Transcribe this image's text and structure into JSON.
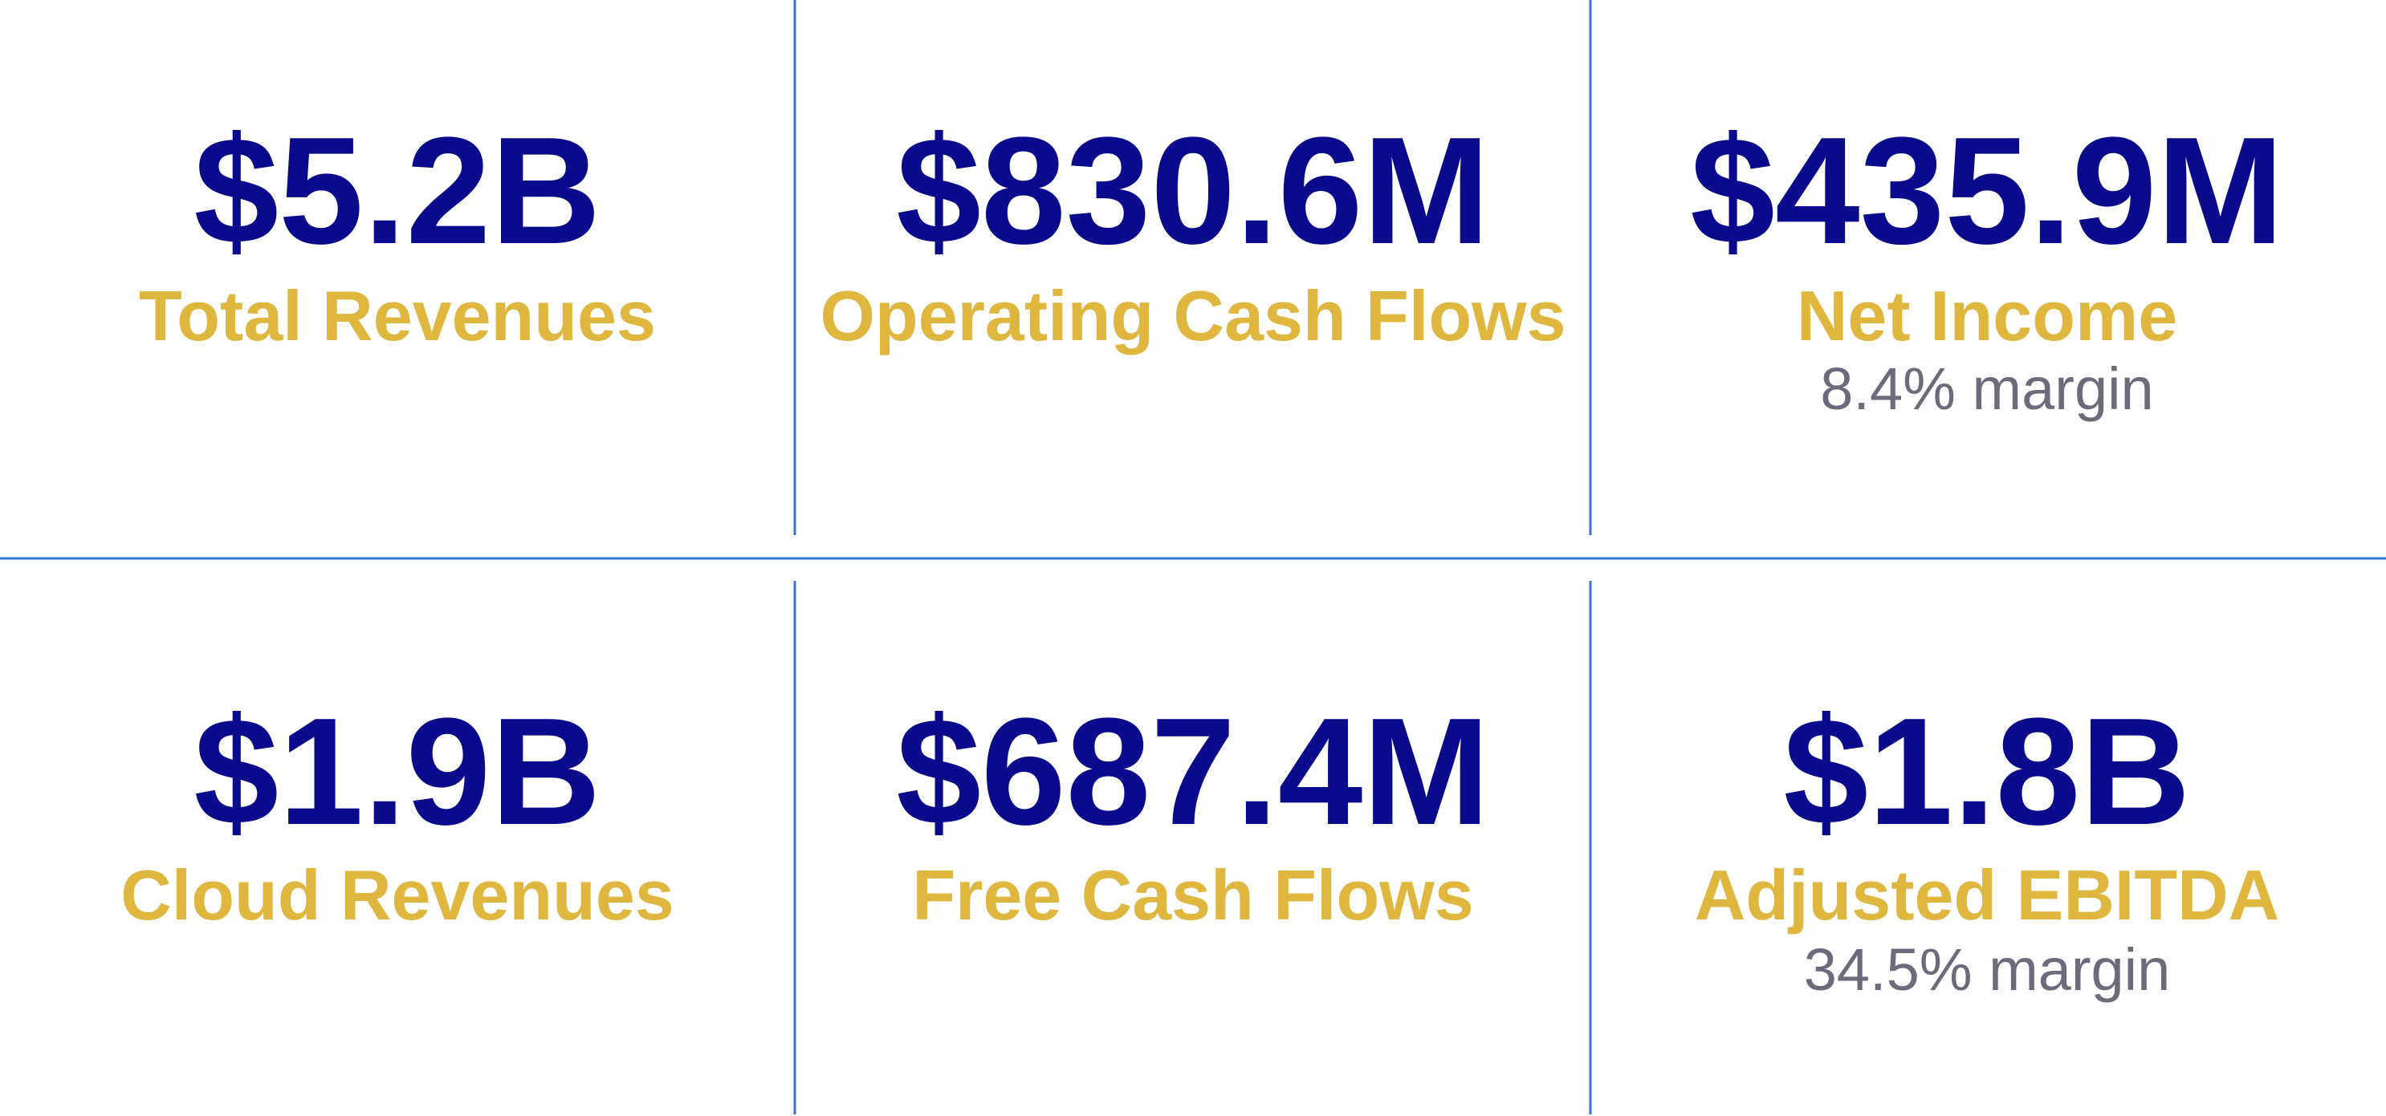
{
  "tiles": [
    {
      "value": "$5.2B",
      "label": "Total Revenues"
    },
    {
      "value": "$830.6M",
      "label": "Operating Cash Flows"
    },
    {
      "value": "$435.9M",
      "label": "Net Income",
      "note": "8.4% margin"
    },
    {
      "value": "$1.9B",
      "label": "Cloud Revenues"
    },
    {
      "value": "$687.4M",
      "label": "Free Cash Flows"
    },
    {
      "value": "$1.8B",
      "label": "Adjusted EBITDA",
      "note": "34.5% margin"
    }
  ]
}
